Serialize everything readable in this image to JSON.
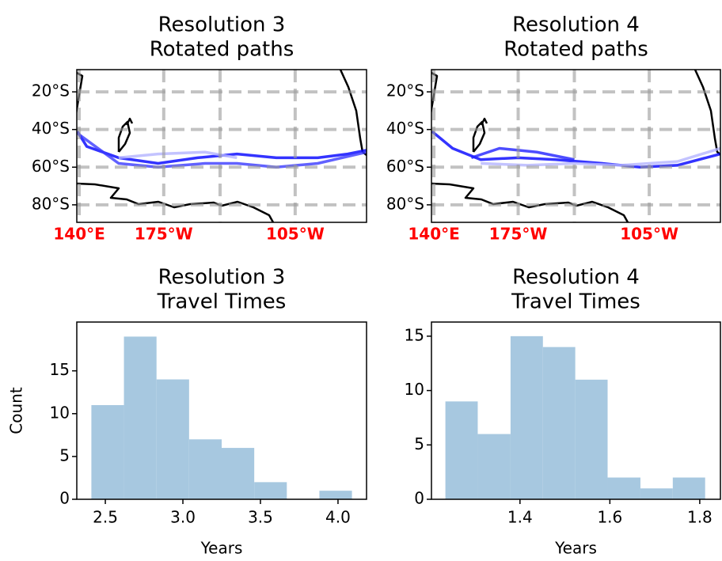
{
  "chart_data": [
    {
      "type": "line",
      "title": [
        "Resolution 3",
        "Rotated paths"
      ],
      "xlim": [
        138.7,
        293
      ],
      "ylim": [
        -89.3,
        -8.2
      ],
      "xticks": [
        {
          "value": 140,
          "label": "140°E"
        },
        {
          "value": 185,
          "label": "175°W"
        },
        {
          "value": 215,
          "label": null
        },
        {
          "value": 255,
          "label": "105°W"
        }
      ],
      "yticks": [
        {
          "value": -20,
          "label": "20°S"
        },
        {
          "value": -40,
          "label": "40°S"
        },
        {
          "value": -60,
          "label": "60°S"
        },
        {
          "value": -80,
          "label": "80°S"
        }
      ],
      "xtick_color": "#ff0000",
      "xtick_weight": "bold",
      "grid": true,
      "series": [
        {
          "color": "#0000ff",
          "x": [
            139,
            144,
            161,
            182,
            203,
            224,
            245,
            267,
            283,
            293
          ],
          "values": [
            -41,
            -49,
            -55,
            -58,
            -55,
            -53,
            -55,
            -55,
            -53,
            -51
          ]
        },
        {
          "color": "#3a3aff",
          "x": [
            139,
            161,
            182,
            207,
            224,
            245,
            267,
            293
          ],
          "values": [
            -42,
            -58,
            -60,
            -58,
            -58,
            -60,
            -58,
            -52
          ]
        },
        {
          "color": "#b4b4ff",
          "x": [
            161,
            182,
            207,
            224
          ],
          "values": [
            -55,
            -53,
            -52,
            -55
          ]
        }
      ]
    },
    {
      "type": "line",
      "title": [
        "Resolution 4",
        "Rotated paths"
      ],
      "xlim": [
        138.7,
        293
      ],
      "ylim": [
        -89.3,
        -8.2
      ],
      "xticks": [
        {
          "value": 140,
          "label": "140°E"
        },
        {
          "value": 185,
          "label": "175°W"
        },
        {
          "value": 215,
          "label": null
        },
        {
          "value": 255,
          "label": "105°W"
        }
      ],
      "yticks": [
        {
          "value": -20,
          "label": "20°S"
        },
        {
          "value": -40,
          "label": "40°S"
        },
        {
          "value": -60,
          "label": "60°S"
        },
        {
          "value": -80,
          "label": "80°S"
        }
      ],
      "xtick_color": "#ff0000",
      "xtick_weight": "bold",
      "grid": true,
      "series": [
        {
          "color": "#0000ff",
          "x": [
            139,
            150,
            165,
            185,
            205,
            230,
            250,
            270,
            293
          ],
          "values": [
            -41,
            -50,
            -56,
            -55,
            -56,
            -58,
            -60,
            -59,
            -53
          ]
        },
        {
          "color": "#2020ff",
          "x": [
            160,
            175,
            195,
            215
          ],
          "values": [
            -55,
            -50,
            -52,
            -56
          ]
        },
        {
          "color": "#b4b4ff",
          "x": [
            165,
            190,
            215,
            240,
            270,
            293
          ],
          "values": [
            -58,
            -59,
            -58,
            -59,
            -57,
            -50
          ]
        }
      ]
    },
    {
      "type": "histogram",
      "title": [
        "Resolution 3",
        "Travel Times"
      ],
      "xlabel": "Years",
      "ylabel": "Count",
      "color": "#a7c8e0",
      "bins": [
        2.41,
        2.62,
        2.83,
        3.04,
        3.25,
        3.46,
        3.67,
        3.88,
        4.09
      ],
      "values": [
        11,
        19,
        14,
        7,
        6,
        2,
        0,
        1
      ],
      "xlim": [
        2.316,
        4.184
      ],
      "ylim": [
        0,
        20.7
      ],
      "xticks": [
        2.5,
        {
          "value": 3,
          "label": "3.0"
        },
        3.5,
        {
          "value": 4,
          "label": "4.0"
        }
      ],
      "yticks": [
        0,
        5,
        10,
        15
      ]
    },
    {
      "type": "histogram",
      "title": [
        "Resolution 4",
        "Travel Times"
      ],
      "xlabel": "Years",
      "color": "#a7c8e0",
      "bins": [
        1.234,
        1.306,
        1.379,
        1.451,
        1.523,
        1.595,
        1.668,
        1.74,
        1.812
      ],
      "values": [
        9,
        6,
        15,
        14,
        11,
        2,
        1,
        2
      ],
      "xlim": [
        1.203,
        1.846
      ],
      "ylim": [
        0,
        16.3
      ],
      "xticks": [
        1.4,
        1.6,
        1.8
      ],
      "yticks": [
        0,
        5,
        10,
        15
      ]
    }
  ]
}
